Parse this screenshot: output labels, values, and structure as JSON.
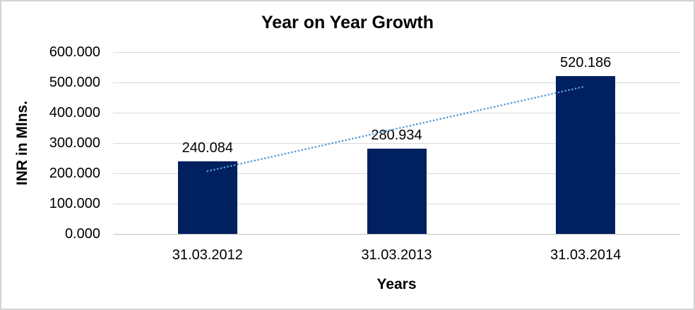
{
  "chart_data": {
    "type": "bar",
    "title": "Year on Year Growth",
    "xlabel": "Years",
    "ylabel": "INR in Mlns.",
    "categories": [
      "31.03.2012",
      "31.03.2013",
      "31.03.2014"
    ],
    "values": [
      240.084,
      280.934,
      520.186
    ],
    "data_labels": [
      "240.084",
      "280.934",
      "520.186"
    ],
    "y_ticks": [
      "0.000",
      "100.000",
      "200.000",
      "300.000",
      "400.000",
      "500.000",
      "600.000"
    ],
    "y_tick_values": [
      0,
      100,
      200,
      300,
      400,
      500,
      600
    ],
    "ylim": [
      0,
      600
    ],
    "grid": "horizontal",
    "legend": "none",
    "trendline": {
      "type": "linear",
      "style": "dotted"
    },
    "colors": {
      "bar": "#002060",
      "trendline": "#5b9bd5",
      "gridline": "#d9d9d9",
      "zero_line": "#c0c0c0",
      "text": "#000000",
      "chart_border": "#d3d3d3",
      "background": "#ffffff"
    }
  }
}
